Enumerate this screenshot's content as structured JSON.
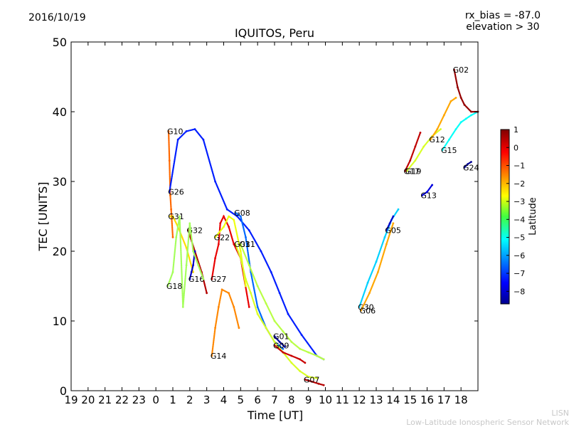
{
  "header": {
    "date": "2016/10/19",
    "bias": "rx_bias = -87.0",
    "elevation": "elevation > 30",
    "title": "IQUITOS, Peru"
  },
  "footer": {
    "short": "LISN",
    "long": "Low-Latitude Ionospheric Sensor Network"
  },
  "chart_data": {
    "type": "scatter",
    "title": "IQUITOS, Peru",
    "xlabel": "Time [UT]",
    "ylabel": "TEC [UNITS]",
    "xlim": [
      19,
      43
    ],
    "ylim": [
      0,
      50
    ],
    "grid": false,
    "x_ticks": [
      19,
      20,
      21,
      22,
      23,
      24,
      25,
      26,
      27,
      28,
      29,
      30,
      31,
      32,
      33,
      34,
      35,
      36,
      37,
      38,
      39,
      40,
      41,
      42
    ],
    "x_tick_labels": [
      "19",
      "20",
      "21",
      "22",
      "23",
      "0",
      "1",
      "2",
      "3",
      "4",
      "5",
      "6",
      "7",
      "8",
      "9",
      "10",
      "11",
      "12",
      "13",
      "14",
      "15",
      "16",
      "17",
      "18"
    ],
    "y_ticks": [
      0,
      10,
      20,
      30,
      40,
      50
    ],
    "colorbar": {
      "label": "Latitude",
      "min": -8.7,
      "max": 1.0,
      "ticks": [
        1,
        0,
        -1,
        -2,
        -3,
        -4,
        -5,
        -6,
        -7,
        -8
      ],
      "colormap": "jet"
    },
    "series": [
      {
        "name": "G10",
        "lat": -1.2,
        "x": [
          24.75,
          24.8,
          24.85,
          24.9,
          25.0
        ],
        "y": [
          37.2,
          33,
          28,
          26,
          22
        ]
      },
      {
        "name": "G26",
        "lat": -7.2,
        "x": [
          24.8,
          25.3,
          25.8,
          26.3,
          26.8,
          27.5,
          28.2,
          28.8,
          29.5,
          30.2,
          30.8,
          31.3,
          31.8,
          32.6,
          33.5,
          33.9
        ],
        "y": [
          28.5,
          36,
          37.2,
          37.5,
          36,
          30,
          26,
          25,
          23,
          20,
          17,
          14,
          11,
          8,
          5,
          4.5
        ]
      },
      {
        "name": "G31",
        "lat": -2.3,
        "x": [
          24.8,
          25.0,
          25.3,
          25.8,
          26.2
        ],
        "y": [
          25,
          25,
          23.5,
          20.5,
          17
        ]
      },
      {
        "name": "G32",
        "lat": 0.5,
        "x": [
          25.9,
          26.3,
          26.7,
          27.0
        ],
        "y": [
          23,
          20,
          17,
          14
        ]
      },
      {
        "name": "G16",
        "lat": -8.0,
        "x": [
          26.0,
          26.1,
          26.2,
          26.3
        ],
        "y": [
          16,
          17,
          18,
          20
        ]
      },
      {
        "name": "G18",
        "lat": -3.5,
        "x": [
          24.7,
          25.0,
          25.2,
          25.4,
          25.6,
          25.8,
          26.0,
          26.2,
          26.5,
          26.8
        ],
        "y": [
          15,
          17,
          22,
          25,
          12,
          18,
          24,
          20,
          18,
          16
        ]
      },
      {
        "name": "G27",
        "lat": 0.0,
        "x": [
          27.3,
          27.5,
          27.7,
          27.8,
          28.0,
          28.3,
          28.6,
          29.0,
          29.5
        ],
        "y": [
          16,
          19,
          21,
          24,
          25,
          23.5,
          21,
          19,
          12
        ]
      },
      {
        "name": "G08",
        "lat": -6.5,
        "x": [
          28.7,
          29.0,
          29.3,
          29.6,
          30.0,
          30.5,
          31.0,
          31.5
        ],
        "y": [
          25.5,
          25,
          22,
          17,
          12,
          9,
          7,
          6
        ]
      },
      {
        "name": "G22",
        "lat": -2.8,
        "x": [
          27.5,
          28.0,
          28.3,
          28.6,
          29.0,
          29.3
        ],
        "y": [
          22,
          23.5,
          25,
          24.5,
          20,
          15
        ]
      },
      {
        "name": "G14",
        "lat": -1.5,
        "x": [
          27.3,
          27.5,
          27.7,
          27.9,
          28.3,
          28.6,
          28.9
        ],
        "y": [
          5,
          9,
          12,
          14.5,
          14,
          12,
          9
        ]
      },
      {
        "name": "G03",
        "lat": -3.0,
        "x": [
          28.7,
          29.0,
          29.3,
          29.6,
          30.0,
          30.5,
          31.0,
          31.5,
          32.0,
          32.5,
          33.0,
          33.5
        ],
        "y": [
          21,
          19,
          16,
          14,
          11,
          9,
          7,
          5.5,
          4,
          2.8,
          2,
          1.8
        ]
      },
      {
        "name": "G11",
        "lat": -3.3,
        "x": [
          29.0,
          29.5,
          30.0,
          30.5,
          31.0,
          31.5,
          32.0,
          32.5,
          33.0,
          33.5,
          33.9
        ],
        "y": [
          21,
          18,
          15,
          12.5,
          10,
          8.5,
          7,
          6,
          5.5,
          5,
          4.5
        ]
      },
      {
        "name": "G01",
        "lat": -8.3,
        "x": [
          31.0,
          31.3,
          31.6
        ],
        "y": [
          7.8,
          7,
          6.3
        ]
      },
      {
        "name": "G09",
        "lat": 0.3,
        "x": [
          31.0,
          31.5,
          32.0,
          32.5,
          32.8
        ],
        "y": [
          6.5,
          5.5,
          5,
          4.5,
          4
        ]
      },
      {
        "name": "G07",
        "lat": 0.5,
        "x": [
          32.8,
          33.2,
          33.6,
          33.9
        ],
        "y": [
          1.6,
          1.3,
          1,
          0.8
        ]
      },
      {
        "name": "G30",
        "lat": -5.5,
        "x": [
          36.0,
          36.5,
          37.0,
          37.5,
          37.9,
          38.3
        ],
        "y": [
          12,
          15.5,
          18.5,
          22,
          24.5,
          26
        ]
      },
      {
        "name": "G06",
        "lat": -1.8,
        "x": [
          36.1,
          36.6,
          37.1,
          37.6,
          38.0
        ],
        "y": [
          11.5,
          14,
          17,
          21,
          24
        ]
      },
      {
        "name": "G05",
        "lat": -8.0,
        "x": [
          37.6,
          37.8,
          38.0
        ],
        "y": [
          23,
          24,
          25
        ]
      },
      {
        "name": "G17",
        "lat": 0.4,
        "x": [
          38.7,
          39.0,
          39.3,
          39.6
        ],
        "y": [
          31.5,
          33,
          35,
          37
        ]
      },
      {
        "name": "G19",
        "lat": -3.0,
        "x": [
          38.8,
          39.3,
          39.8,
          40.3,
          40.8
        ],
        "y": [
          31.5,
          33,
          35,
          36.5,
          37.5
        ]
      },
      {
        "name": "G13",
        "lat": -7.8,
        "x": [
          39.7,
          40.0,
          40.3
        ],
        "y": [
          28,
          28.5,
          29.5
        ]
      },
      {
        "name": "G12",
        "lat": -1.8,
        "x": [
          40.2,
          40.6,
          41.0,
          41.4,
          41.7
        ],
        "y": [
          36,
          37.5,
          39.5,
          41.5,
          42
        ]
      },
      {
        "name": "G15",
        "lat": -5.0,
        "x": [
          40.9,
          41.3,
          41.7,
          42.0,
          42.3,
          42.6,
          43.0
        ],
        "y": [
          34.5,
          36,
          37.5,
          38.5,
          39,
          39.5,
          40
        ]
      },
      {
        "name": "G02",
        "lat": 0.8,
        "x": [
          41.6,
          41.8,
          42.0,
          42.2,
          42.6,
          43.0
        ],
        "y": [
          46,
          43.5,
          42,
          41,
          40,
          40
        ]
      },
      {
        "name": "G24",
        "lat": -8.5,
        "x": [
          42.2,
          42.4,
          42.6
        ],
        "y": [
          32,
          32.5,
          32.8
        ]
      }
    ]
  }
}
